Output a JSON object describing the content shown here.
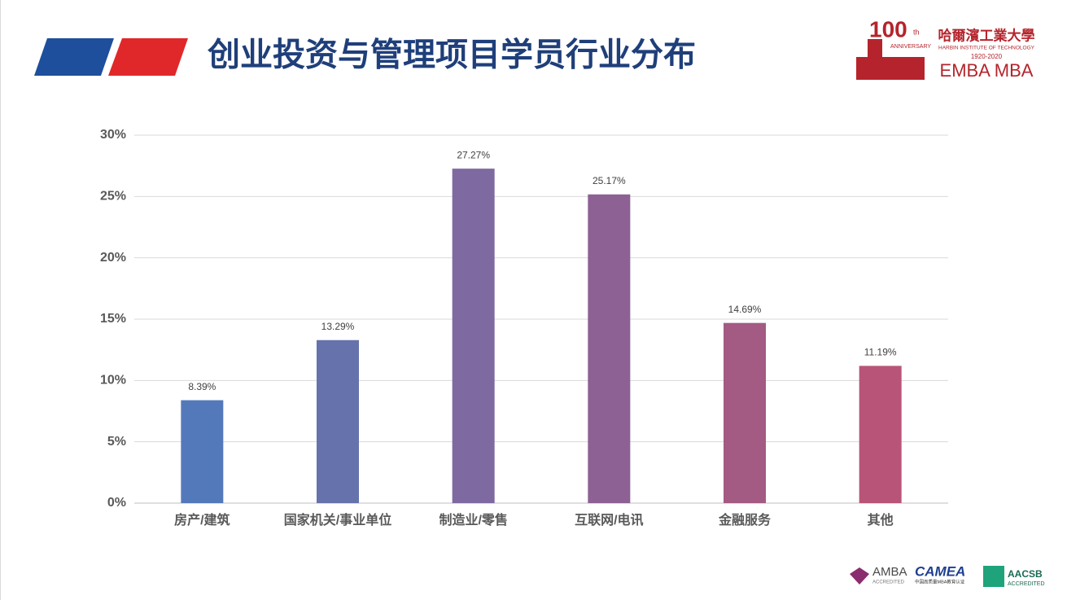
{
  "chart_data": {
    "type": "bar",
    "title": "创业投资与管理项目学员行业分布",
    "categories": [
      "房产/建筑",
      "国家机关/事业单位",
      "制造业/零售",
      "互联网/电讯",
      "金融服务",
      "其他"
    ],
    "values": [
      8.39,
      13.29,
      27.27,
      25.17,
      14.69,
      11.19
    ],
    "value_labels": [
      "8.39%",
      "13.29%",
      "27.27%",
      "25.17%",
      "14.69%",
      "11.19%"
    ],
    "colors": [
      "#5479bb",
      "#6672ab",
      "#7e6aa0",
      "#8d6194",
      "#a35a83",
      "#b85478"
    ],
    "ylim": [
      0,
      30
    ],
    "yticks": [
      {
        "value": 0,
        "label": "0%"
      },
      {
        "value": 5,
        "label": "5%"
      },
      {
        "value": 10,
        "label": "10%"
      },
      {
        "value": 15,
        "label": "15%"
      },
      {
        "value": 20,
        "label": "20%"
      },
      {
        "value": 25,
        "label": "25%"
      },
      {
        "value": 30,
        "label": "30%"
      }
    ],
    "grid": true
  },
  "logos": {
    "anniversary": "100",
    "th": "th",
    "anniversary_word": "ANNIVERSARY",
    "school": "哈爾濱工業大學",
    "school_en": "HARBIN INSTITUTE OF TECHNOLOGY",
    "years": "1920-2020",
    "programs": "EMBA  MBA",
    "amba": "AMBA",
    "amba_sub": "ACCREDITED",
    "camea": "CAMEA",
    "camea_sub": "中国高质量MBA教育认证",
    "aacsb": "AACSB",
    "aacsb_sub": "ACCREDITED"
  }
}
